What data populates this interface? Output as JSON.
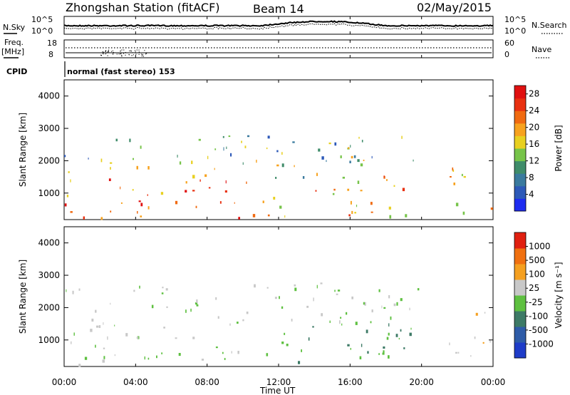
{
  "header": {
    "station": "Zhongshan Station (fitACF)",
    "beam": "Beam 14",
    "date": "02/May/2015"
  },
  "top_panel": {
    "left_label": "N.Sky",
    "left_ticks": [
      "10^5",
      "10^0"
    ],
    "right_ticks": [
      "10^5",
      "10^0"
    ],
    "right_label": "N.Search"
  },
  "freq_panel": {
    "left_label_line1": "Freq.",
    "left_label_line2": "[MHz]",
    "left_ticks": [
      "18",
      "8"
    ],
    "right_ticks": [
      "60",
      "0"
    ],
    "right_label": "Nave",
    "cpid_label": "CPID",
    "cpid_text": "normal (fast stereo) 153"
  },
  "chart_data": [
    {
      "type": "heatmap",
      "panel": "power",
      "ylabel": "Slant Range [km]",
      "xlabel": "",
      "ylim": [
        180,
        4500
      ],
      "yticks": [
        "1000",
        "2000",
        "3000",
        "4000"
      ],
      "yticks_values": [
        1000,
        2000,
        3000,
        4000
      ],
      "x": [
        "00:00",
        "04:00",
        "08:00",
        "12:00",
        "16:00",
        "20:00",
        "00:00"
      ],
      "colorbar": {
        "label": "Power [dB]",
        "ticks": [
          "4",
          "8",
          "12",
          "16",
          "20",
          "24",
          "28"
        ],
        "range": [
          0,
          30
        ],
        "colors": [
          "#1e2cf0",
          "#2d59b8",
          "#3a7a9e",
          "#3f8c6a",
          "#77c44a",
          "#e8d020",
          "#f7a21e",
          "#f06a10",
          "#e83010",
          "#e01010"
        ]
      },
      "scatter_regions": [
        {
          "t": [
            0.0,
            10.5
          ],
          "r": [
            250,
            1500
          ],
          "value_range": [
            16,
            30
          ]
        },
        {
          "t": [
            10.5,
            19.5
          ],
          "r": [
            300,
            1600
          ],
          "value_range": [
            12,
            28
          ]
        },
        {
          "t": [
            0.0,
            20.0
          ],
          "r": [
            1500,
            2800
          ],
          "value_range": [
            4,
            20
          ]
        },
        {
          "t": [
            21.5,
            24.0
          ],
          "r": [
            400,
            1900
          ],
          "value_range": [
            8,
            28
          ]
        }
      ]
    },
    {
      "type": "heatmap",
      "panel": "velocity",
      "ylabel": "Slant Range [km]",
      "xlabel": "Time UT",
      "ylim": [
        180,
        4500
      ],
      "yticks": [
        "1000",
        "2000",
        "3000",
        "4000"
      ],
      "yticks_values": [
        1000,
        2000,
        3000,
        4000
      ],
      "x": [
        "00:00",
        "04:00",
        "08:00",
        "12:00",
        "16:00",
        "20:00",
        "00:00"
      ],
      "colorbar": {
        "label": "Velocity [m s⁻¹]",
        "ticks": [
          "1000",
          "500",
          "100",
          "25",
          "-25",
          "-100",
          "-500",
          "-1000"
        ],
        "range": [
          -1200,
          1200
        ],
        "colors": [
          "#1e3cc8",
          "#2e5ca8",
          "#3d7a66",
          "#5ec040",
          "#c8c8c8",
          "#f5a020",
          "#f07010",
          "#e02010"
        ]
      },
      "scatter_regions": [
        {
          "t": [
            0.0,
            10.5
          ],
          "r": [
            250,
            1500
          ],
          "value_range": [
            -200,
            300
          ]
        },
        {
          "t": [
            10.5,
            19.5
          ],
          "r": [
            300,
            1600
          ],
          "value_range": [
            -500,
            -25
          ]
        },
        {
          "t": [
            0.0,
            20.0
          ],
          "r": [
            1500,
            2800
          ],
          "value_range": [
            -300,
            300
          ]
        },
        {
          "t": [
            21.5,
            24.0
          ],
          "r": [
            400,
            1900
          ],
          "value_range": [
            50,
            400
          ]
        }
      ]
    }
  ],
  "bottom_axis": {
    "ticks": [
      "00:00",
      "04:00",
      "08:00",
      "12:00",
      "16:00",
      "20:00",
      "00:00"
    ],
    "label": "Time UT"
  }
}
